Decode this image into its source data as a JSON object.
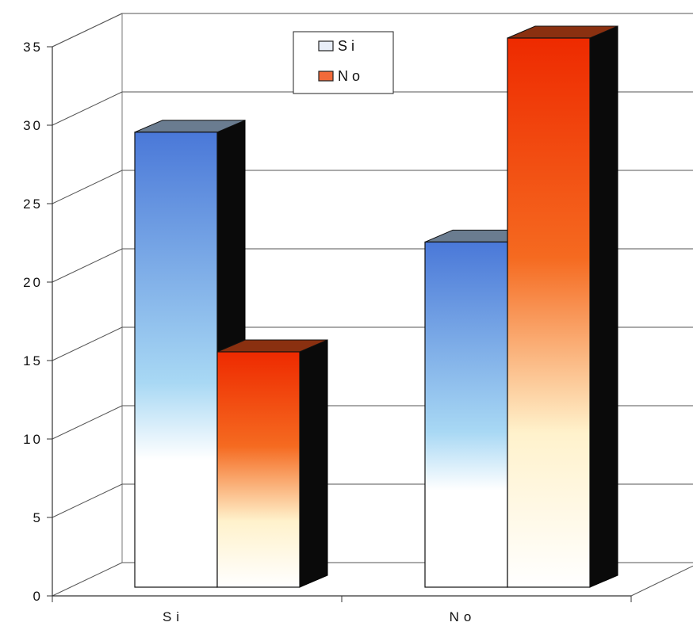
{
  "chart_data": {
    "type": "bar",
    "style": "3d-clustered-column",
    "categories": [
      "Si",
      "No"
    ],
    "series": [
      {
        "name": "Si",
        "values": [
          29,
          22
        ],
        "color_top": "#4a78d8",
        "color_bottom": "#ffffff"
      },
      {
        "name": "No",
        "values": [
          15,
          35
        ],
        "color_top": "#ee2a00",
        "color_bottom": "#ffffff"
      }
    ],
    "ylim": [
      0,
      35
    ],
    "yticks": [
      "0",
      "5",
      "10",
      "15",
      "20",
      "25",
      "30",
      "35"
    ],
    "grid": true,
    "legend": {
      "position": "top-center",
      "entries": [
        "Si",
        "No"
      ]
    }
  }
}
